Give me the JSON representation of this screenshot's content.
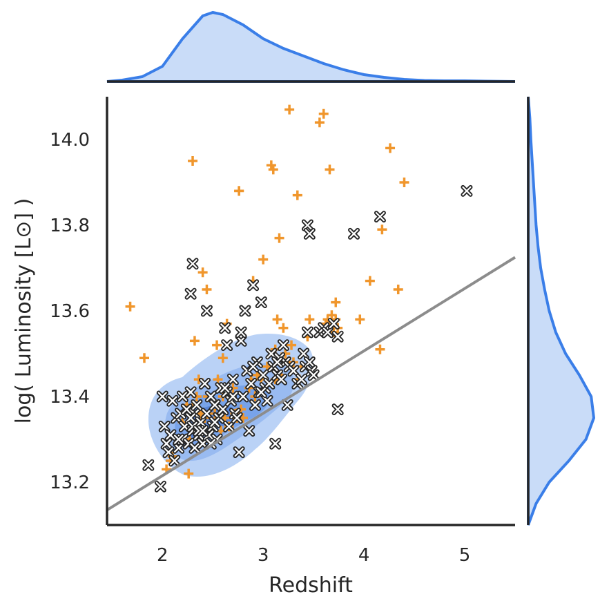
{
  "chart_data": {
    "type": "scatter",
    "xlabel": "Redshift",
    "ylabel": "log( Luminosity [L⊙] )",
    "xlim": [
      1.45,
      5.5
    ],
    "ylim": [
      13.1,
      14.1
    ],
    "x_ticks": [
      2,
      3,
      4,
      5
    ],
    "y_ticks": [
      13.2,
      13.4,
      13.6,
      13.8,
      14.0
    ],
    "x_tick_labels": [
      "2",
      "3",
      "4",
      "5"
    ],
    "y_tick_labels": [
      "13.2",
      "13.4",
      "13.6",
      "13.8",
      "14.0"
    ],
    "grid": false,
    "colors": {
      "kde": "#3a7ee8",
      "kde_fill": "#c9dcf8",
      "plus_markers": "#f0962c",
      "x_markers": "#262626",
      "trend_line": "#8c8c8c",
      "axes": "#262626"
    },
    "trend_line": {
      "x": [
        1.45,
        5.5
      ],
      "y": [
        13.135,
        13.725
      ]
    },
    "series": [
      {
        "marker": "plus",
        "x": [
          1.68,
          1.82,
          2.04,
          2.08,
          2.1,
          2.2,
          2.22,
          2.24,
          2.26,
          2.27,
          2.28,
          2.3,
          2.32,
          2.34,
          2.36,
          2.38,
          2.38,
          2.4,
          2.42,
          2.44,
          2.45,
          2.5,
          2.52,
          2.54,
          2.55,
          2.58,
          2.6,
          2.6,
          2.62,
          2.64,
          2.66,
          2.7,
          2.72,
          2.74,
          2.76,
          2.78,
          2.8,
          2.86,
          2.88,
          2.9,
          2.92,
          2.94,
          2.96,
          2.98,
          3.0,
          3.04,
          3.08,
          3.1,
          3.12,
          3.12,
          3.14,
          3.16,
          3.18,
          3.2,
          3.22,
          3.26,
          3.3,
          3.34,
          3.38,
          3.44,
          3.46,
          3.56,
          3.6,
          3.62,
          3.64,
          3.66,
          3.68,
          3.7,
          3.72,
          3.72,
          3.74,
          3.96,
          4.06,
          4.16,
          4.18,
          4.26,
          4.34,
          4.4,
          2.3,
          2.76,
          2.96,
          3.28,
          3.36
        ],
        "y": [
          13.61,
          13.49,
          13.23,
          13.25,
          13.26,
          13.34,
          13.4,
          13.38,
          13.22,
          13.3,
          13.36,
          13.95,
          13.53,
          13.4,
          13.44,
          13.36,
          13.3,
          13.69,
          13.35,
          13.65,
          13.4,
          13.39,
          13.36,
          13.52,
          13.44,
          13.32,
          13.49,
          13.4,
          13.35,
          13.57,
          13.33,
          13.42,
          13.36,
          13.35,
          13.88,
          13.37,
          13.35,
          13.42,
          13.44,
          13.67,
          13.4,
          13.45,
          13.41,
          13.44,
          13.72,
          13.47,
          13.94,
          13.93,
          13.51,
          13.44,
          13.58,
          13.77,
          13.45,
          13.56,
          13.5,
          14.07,
          13.48,
          13.87,
          13.47,
          13.54,
          13.58,
          14.04,
          14.06,
          13.57,
          13.58,
          13.93,
          13.59,
          13.55,
          13.62,
          13.58,
          13.56,
          13.58,
          13.67,
          13.51,
          13.79,
          13.98,
          13.65,
          13.9,
          13.38,
          13.88,
          13.45,
          13.52,
          13.44
        ]
      },
      {
        "marker": "x",
        "x": [
          1.86,
          1.98,
          2.0,
          2.02,
          2.04,
          2.06,
          2.08,
          2.1,
          2.12,
          2.14,
          2.16,
          2.18,
          2.2,
          2.2,
          2.22,
          2.24,
          2.26,
          2.28,
          2.28,
          2.3,
          2.3,
          2.32,
          2.32,
          2.34,
          2.36,
          2.38,
          2.4,
          2.42,
          2.44,
          2.46,
          2.48,
          2.5,
          2.52,
          2.54,
          2.56,
          2.58,
          2.6,
          2.62,
          2.64,
          2.66,
          2.68,
          2.7,
          2.72,
          2.74,
          2.76,
          2.78,
          2.8,
          2.82,
          2.84,
          2.86,
          2.88,
          2.9,
          2.92,
          2.94,
          2.96,
          2.98,
          3.0,
          3.02,
          3.04,
          3.06,
          3.08,
          3.1,
          3.12,
          3.14,
          3.16,
          3.18,
          3.2,
          3.22,
          3.24,
          3.26,
          3.3,
          3.34,
          3.38,
          3.4,
          3.42,
          3.44,
          3.46,
          3.48,
          3.5,
          3.56,
          3.6,
          3.64,
          3.7,
          3.74,
          3.74,
          3.9,
          4.16,
          5.02,
          2.28,
          2.3,
          2.44,
          2.64,
          2.78,
          2.84,
          2.9,
          2.98,
          3.14,
          3.44,
          3.46,
          2.36,
          2.48,
          2.56,
          2.7,
          2.62,
          2.52,
          2.4,
          2.16
        ],
        "y": [
          13.24,
          13.19,
          13.4,
          13.33,
          13.29,
          13.27,
          13.31,
          13.39,
          13.25,
          13.35,
          13.28,
          13.36,
          13.3,
          13.4,
          13.33,
          13.37,
          13.29,
          13.41,
          13.64,
          13.71,
          13.32,
          13.36,
          13.28,
          13.38,
          13.31,
          13.34,
          13.29,
          13.43,
          13.36,
          13.31,
          13.4,
          13.33,
          13.38,
          13.3,
          13.35,
          13.42,
          13.37,
          13.56,
          13.41,
          13.33,
          13.39,
          13.44,
          13.36,
          13.35,
          13.27,
          13.53,
          13.4,
          13.6,
          13.46,
          13.32,
          13.43,
          13.66,
          13.38,
          13.48,
          13.41,
          13.62,
          13.45,
          13.42,
          13.39,
          13.43,
          13.5,
          13.47,
          13.29,
          13.45,
          13.49,
          13.44,
          13.52,
          13.48,
          13.38,
          13.47,
          13.46,
          13.43,
          13.44,
          13.5,
          13.47,
          13.55,
          13.48,
          13.46,
          13.45,
          13.55,
          13.56,
          13.55,
          13.57,
          13.54,
          13.37,
          13.78,
          13.82,
          13.88,
          13.35,
          13.33,
          13.6,
          13.52,
          13.55,
          13.46,
          13.47,
          13.41,
          13.48,
          13.8,
          13.78,
          13.32,
          13.29,
          13.35,
          13.4,
          13.42,
          13.34,
          13.32,
          13.3
        ]
      }
    ],
    "marginal_x_kde": {
      "x": [
        1.45,
        1.6,
        1.8,
        2.0,
        2.2,
        2.4,
        2.5,
        2.6,
        2.8,
        3.0,
        3.2,
        3.4,
        3.6,
        3.8,
        4.0,
        4.2,
        4.4,
        4.6,
        4.8,
        5.0,
        5.2,
        5.5
      ],
      "density": [
        0.0,
        0.02,
        0.07,
        0.22,
        0.62,
        0.95,
        1.0,
        0.97,
        0.82,
        0.62,
        0.48,
        0.37,
        0.26,
        0.17,
        0.1,
        0.06,
        0.03,
        0.015,
        0.01,
        0.01,
        0.005,
        0.0
      ]
    },
    "marginal_y_kde": {
      "y": [
        13.1,
        13.15,
        13.2,
        13.25,
        13.3,
        13.35,
        13.4,
        13.45,
        13.5,
        13.55,
        13.6,
        13.65,
        13.7,
        13.75,
        13.8,
        13.85,
        13.9,
        13.95,
        14.0,
        14.05,
        14.1
      ],
      "density": [
        0.0,
        0.12,
        0.32,
        0.62,
        0.88,
        1.0,
        0.96,
        0.78,
        0.57,
        0.42,
        0.32,
        0.25,
        0.19,
        0.15,
        0.12,
        0.1,
        0.08,
        0.06,
        0.04,
        0.025,
        0.0
      ]
    }
  }
}
